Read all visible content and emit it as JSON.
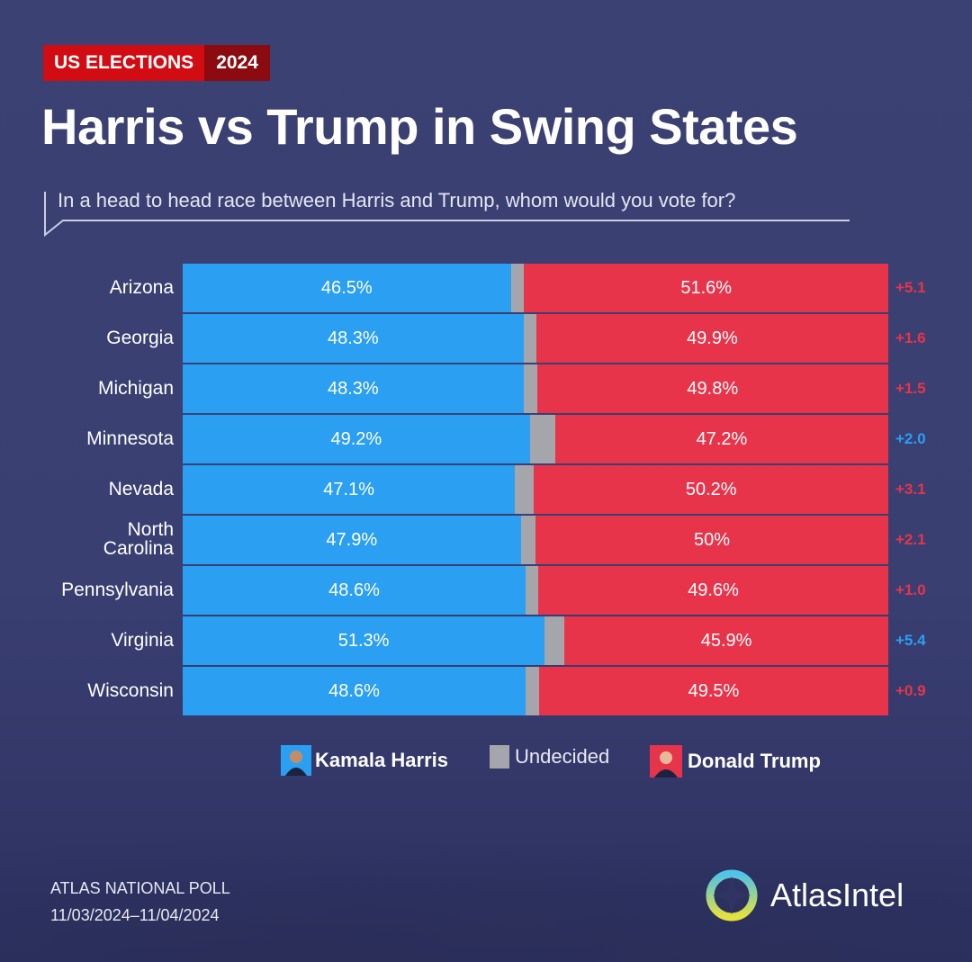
{
  "header": {
    "badge": "US ELECTIONS",
    "year": "2024",
    "title": "Harris vs Trump in Swing States",
    "question": "In a head to head race between Harris and Trump, whom would you vote for?"
  },
  "colors": {
    "harris": "#2b9ff2",
    "trump": "#e8344a",
    "undecided": "#a5a6ab"
  },
  "chart_data": {
    "type": "bar",
    "stacked": true,
    "orientation": "horizontal",
    "xlim": [
      0,
      100
    ],
    "title": "Harris vs Trump in Swing States",
    "categories": [
      "Arizona",
      "Georgia",
      "Michigan",
      "Minnesota",
      "Nevada",
      "North Carolina",
      "Pennsylvania",
      "Virginia",
      "Wisconsin"
    ],
    "series": [
      {
        "name": "Kamala Harris",
        "values": [
          46.5,
          48.3,
          48.3,
          49.2,
          47.1,
          47.9,
          48.6,
          51.3,
          48.6
        ],
        "labels": [
          "46.5%",
          "48.3%",
          "48.3%",
          "49.2%",
          "47.1%",
          "47.9%",
          "48.6%",
          "51.3%",
          "48.6%"
        ]
      },
      {
        "name": "Undecided",
        "values": [
          1.9,
          1.8,
          1.9,
          3.6,
          2.7,
          2.1,
          1.8,
          2.8,
          1.9
        ]
      },
      {
        "name": "Donald Trump",
        "values": [
          51.6,
          49.9,
          49.8,
          47.2,
          50.2,
          50,
          49.6,
          45.9,
          49.5
        ],
        "labels": [
          "51.6%",
          "49.9%",
          "49.8%",
          "47.2%",
          "50.2%",
          "50%",
          "49.6%",
          "45.9%",
          "49.5%"
        ]
      }
    ],
    "margins": [
      "+5.1",
      "+1.6",
      "+1.5",
      "+2.0",
      "+3.1",
      "+2.1",
      "+1.0",
      "+5.4",
      "+0.9"
    ],
    "margin_leader": [
      "trump",
      "trump",
      "trump",
      "harris",
      "trump",
      "trump",
      "trump",
      "harris",
      "trump"
    ],
    "legend": [
      "Kamala Harris",
      "Undecided",
      "Donald Trump"
    ],
    "legend_position": "bottom"
  },
  "footer": {
    "poll": "ATLAS NATIONAL POLL",
    "dates": "11/03/2024–11/04/2024",
    "brand": "AtlasIntel"
  }
}
